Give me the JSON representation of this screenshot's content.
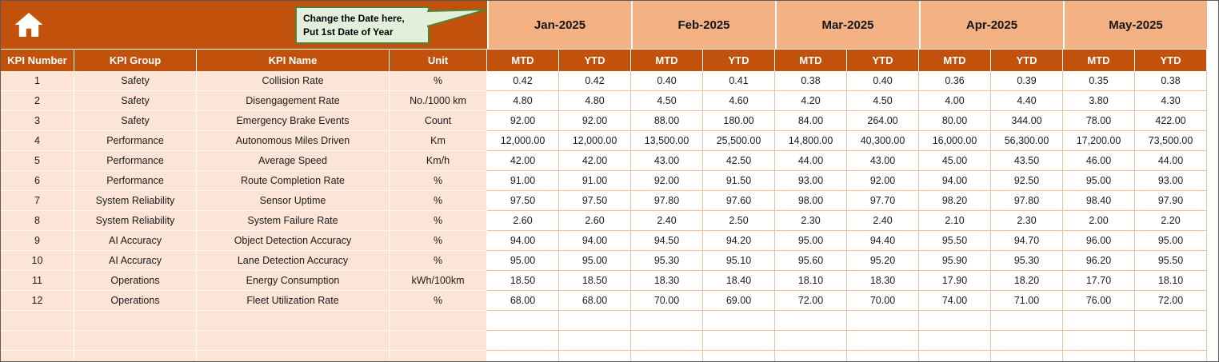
{
  "colors": {
    "header_dark": "#C2520B",
    "month_band": "#F4B183",
    "row_shade": "#FCE4D6",
    "grid_line": "#F0C09A",
    "callout_bg": "#E2EFDA",
    "callout_border": "#538135"
  },
  "callout": {
    "line1": "Change the Date here,",
    "line2": "Put 1st Date of Year"
  },
  "table": {
    "months": [
      "Jan-2025",
      "Feb-2025",
      "Mar-2025",
      "Apr-2025",
      "May-2025"
    ],
    "subheaders": [
      "MTD",
      "YTD"
    ],
    "columns": [
      "KPI Number",
      "KPI Group",
      "KPI Name",
      "Unit"
    ],
    "empty_rows": 3,
    "rows": [
      {
        "number": "1",
        "group": "Safety",
        "name": "Collision Rate",
        "unit": "%",
        "values": [
          "0.42",
          "0.42",
          "0.40",
          "0.41",
          "0.38",
          "0.40",
          "0.36",
          "0.39",
          "0.35",
          "0.38"
        ]
      },
      {
        "number": "2",
        "group": "Safety",
        "name": "Disengagement Rate",
        "unit": "No./1000 km",
        "values": [
          "4.80",
          "4.80",
          "4.50",
          "4.60",
          "4.20",
          "4.50",
          "4.00",
          "4.40",
          "3.80",
          "4.30"
        ]
      },
      {
        "number": "3",
        "group": "Safety",
        "name": "Emergency Brake Events",
        "unit": "Count",
        "values": [
          "92.00",
          "92.00",
          "88.00",
          "180.00",
          "84.00",
          "264.00",
          "80.00",
          "344.00",
          "78.00",
          "422.00"
        ]
      },
      {
        "number": "4",
        "group": "Performance",
        "name": "Autonomous Miles Driven",
        "unit": "Km",
        "values": [
          "12,000.00",
          "12,000.00",
          "13,500.00",
          "25,500.00",
          "14,800.00",
          "40,300.00",
          "16,000.00",
          "56,300.00",
          "17,200.00",
          "73,500.00"
        ]
      },
      {
        "number": "5",
        "group": "Performance",
        "name": "Average Speed",
        "unit": "Km/h",
        "values": [
          "42.00",
          "42.00",
          "43.00",
          "42.50",
          "44.00",
          "43.00",
          "45.00",
          "43.50",
          "46.00",
          "44.00"
        ]
      },
      {
        "number": "6",
        "group": "Performance",
        "name": "Route Completion Rate",
        "unit": "%",
        "values": [
          "91.00",
          "91.00",
          "92.00",
          "91.50",
          "93.00",
          "92.00",
          "94.00",
          "92.50",
          "95.00",
          "93.00"
        ]
      },
      {
        "number": "7",
        "group": "System Reliability",
        "name": "Sensor Uptime",
        "unit": "%",
        "values": [
          "97.50",
          "97.50",
          "97.80",
          "97.60",
          "98.00",
          "97.70",
          "98.20",
          "97.80",
          "98.40",
          "97.90"
        ]
      },
      {
        "number": "8",
        "group": "System Reliability",
        "name": "System Failure Rate",
        "unit": "%",
        "values": [
          "2.60",
          "2.60",
          "2.40",
          "2.50",
          "2.30",
          "2.40",
          "2.10",
          "2.30",
          "2.00",
          "2.20"
        ]
      },
      {
        "number": "9",
        "group": "AI Accuracy",
        "name": "Object Detection Accuracy",
        "unit": "%",
        "values": [
          "94.00",
          "94.00",
          "94.50",
          "94.20",
          "95.00",
          "94.40",
          "95.50",
          "94.70",
          "96.00",
          "95.00"
        ]
      },
      {
        "number": "10",
        "group": "AI Accuracy",
        "name": "Lane Detection Accuracy",
        "unit": "%",
        "values": [
          "95.00",
          "95.00",
          "95.30",
          "95.10",
          "95.60",
          "95.20",
          "95.90",
          "95.30",
          "96.20",
          "95.50"
        ]
      },
      {
        "number": "11",
        "group": "Operations",
        "name": "Energy Consumption",
        "unit": "kWh/100km",
        "values": [
          "18.50",
          "18.50",
          "18.30",
          "18.40",
          "18.10",
          "18.30",
          "17.90",
          "18.20",
          "17.70",
          "18.10"
        ]
      },
      {
        "number": "12",
        "group": "Operations",
        "name": "Fleet Utilization Rate",
        "unit": "%",
        "values": [
          "68.00",
          "68.00",
          "70.00",
          "69.00",
          "72.00",
          "70.00",
          "74.00",
          "71.00",
          "76.00",
          "72.00"
        ]
      }
    ]
  }
}
